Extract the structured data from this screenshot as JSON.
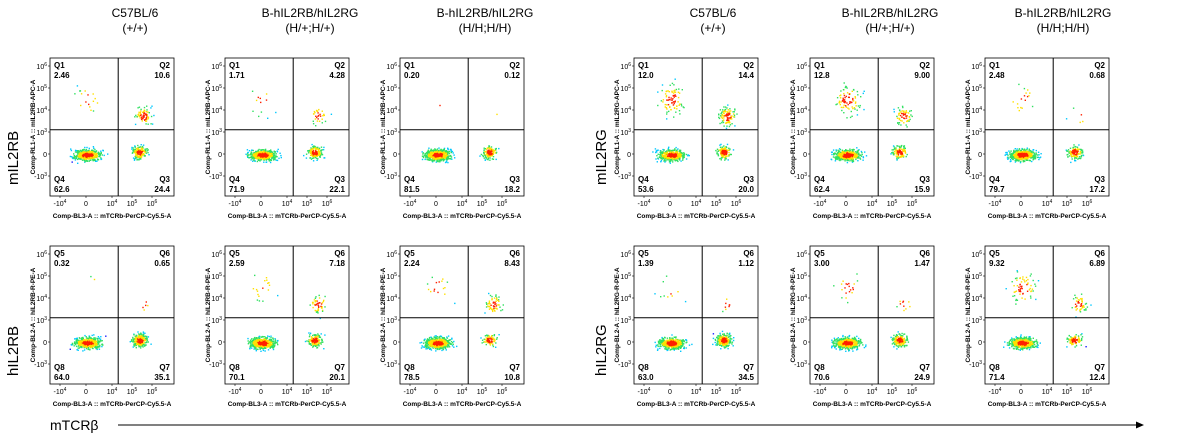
{
  "columns": [
    {
      "line1": "C57BL/6",
      "line2": "(+/+)"
    },
    {
      "line1": "B-hIL2RB/hIL2RG",
      "line2": "(H/+;H/+)"
    },
    {
      "line1": "B-hIL2RB/hIL2RG",
      "line2": "(H/H;H/H)"
    },
    {
      "line1": "C57BL/6",
      "line2": "(+/+)"
    },
    {
      "line1": "B-hIL2RB/hIL2RG",
      "line2": "(H/+;H/+)"
    },
    {
      "line1": "B-hIL2RB/hIL2RG",
      "line2": "(H/H;H/H)"
    }
  ],
  "row_labels": {
    "mIL2RB": "mIL2RB",
    "hIL2RB": "hIL2RB",
    "mIL2RG": "mIL2RG",
    "hIL2RG": "hIL2RG"
  },
  "x_axis_caption": "mTCRβ",
  "tick_labels": {
    "neg": "-10",
    "zero": "0",
    "e3": "10",
    "e4": "10",
    "e5": "10",
    "e6": "10",
    "sup3": "3",
    "sup4": "4",
    "sup5": "5",
    "sup6": "6"
  },
  "colors": {
    "density": [
      "#1a1aff",
      "#00c8ff",
      "#30e060",
      "#ffe000",
      "#ff2000"
    ],
    "gate": "#000000"
  },
  "chart_data": [
    {
      "type": "scatter",
      "xlabel": "Comp-BL3-A :: mTCRb-PerCP-Cy5.5-A",
      "ylabel": "Comp-RL1-A :: mIL2RB-APC-A",
      "quadrants": [
        {
          "name": "Q1",
          "value": "2.46"
        },
        {
          "name": "Q2",
          "value": "10.6"
        },
        {
          "name": "Q4",
          "value": "62.6"
        },
        {
          "name": "Q3",
          "value": "24.4"
        }
      ]
    },
    {
      "type": "scatter",
      "xlabel": "Comp-BL3-A :: mTCRb-PerCP-Cy5.5-A",
      "ylabel": "Comp-RL1-A :: mIL2RB-APC-A",
      "quadrants": [
        {
          "name": "Q1",
          "value": "1.71"
        },
        {
          "name": "Q2",
          "value": "4.28"
        },
        {
          "name": "Q4",
          "value": "71.9"
        },
        {
          "name": "Q3",
          "value": "22.1"
        }
      ]
    },
    {
      "type": "scatter",
      "xlabel": "Comp-BL3-A :: mTCRb-PerCP-Cy5.5-A",
      "ylabel": "Comp-RL1-A :: mIL2RB-APC-A",
      "quadrants": [
        {
          "name": "Q1",
          "value": "0.20"
        },
        {
          "name": "Q2",
          "value": "0.12"
        },
        {
          "name": "Q4",
          "value": "81.5"
        },
        {
          "name": "Q3",
          "value": "18.2"
        }
      ]
    },
    {
      "type": "scatter",
      "xlabel": "Comp-BL3-A :: mTCRb-PerCP-Cy5.5-A",
      "ylabel": "Comp-RL1-A :: mIL2RG-APC-A",
      "quadrants": [
        {
          "name": "Q1",
          "value": "12.0"
        },
        {
          "name": "Q2",
          "value": "14.4"
        },
        {
          "name": "Q4",
          "value": "53.6"
        },
        {
          "name": "Q3",
          "value": "20.0"
        }
      ]
    },
    {
      "type": "scatter",
      "xlabel": "Comp-BL3-A :: mTCRb-PerCP-Cy5.5-A",
      "ylabel": "Comp-RL1-A :: mIL2RG-APC-A",
      "quadrants": [
        {
          "name": "Q1",
          "value": "12.8"
        },
        {
          "name": "Q2",
          "value": "9.00"
        },
        {
          "name": "Q4",
          "value": "62.4"
        },
        {
          "name": "Q3",
          "value": "15.9"
        }
      ]
    },
    {
      "type": "scatter",
      "xlabel": "Comp-BL3-A :: mTCRb-PerCP-Cy5.5-A",
      "ylabel": "Comp-RL1-A :: mIL2RG-APC-A",
      "quadrants": [
        {
          "name": "Q1",
          "value": "2.48"
        },
        {
          "name": "Q2",
          "value": "0.68"
        },
        {
          "name": "Q4",
          "value": "79.7"
        },
        {
          "name": "Q3",
          "value": "17.2"
        }
      ]
    },
    {
      "type": "scatter",
      "xlabel": "Comp-BL3-A :: mTCRb-PerCP-Cy5.5-A",
      "ylabel": "Comp-BL2-A :: hIL2RB-R-PE-A",
      "quadrants": [
        {
          "name": "Q5",
          "value": "0.32"
        },
        {
          "name": "Q6",
          "value": "0.65"
        },
        {
          "name": "Q8",
          "value": "64.0"
        },
        {
          "name": "Q7",
          "value": "35.1"
        }
      ]
    },
    {
      "type": "scatter",
      "xlabel": "Comp-BL3-A :: mTCRb-PerCP-Cy5.5-A",
      "ylabel": "Comp-BL2-A :: hIL2RB-R-PE-A",
      "quadrants": [
        {
          "name": "Q5",
          "value": "2.59"
        },
        {
          "name": "Q6",
          "value": "7.18"
        },
        {
          "name": "Q8",
          "value": "70.1"
        },
        {
          "name": "Q7",
          "value": "20.1"
        }
      ]
    },
    {
      "type": "scatter",
      "xlabel": "Comp-BL3-A :: mTCRb-PerCP-Cy5.5-A",
      "ylabel": "Comp-BL2-A :: hIL2RB-R-PE-A",
      "quadrants": [
        {
          "name": "Q5",
          "value": "2.24"
        },
        {
          "name": "Q6",
          "value": "8.43"
        },
        {
          "name": "Q8",
          "value": "78.5"
        },
        {
          "name": "Q7",
          "value": "10.8"
        }
      ]
    },
    {
      "type": "scatter",
      "xlabel": "Comp-BL3-A :: mTCRb-PerCP-Cy5.5-A",
      "ylabel": "Comp-BL2-A :: hIL2RG-R-PE-A",
      "quadrants": [
        {
          "name": "Q5",
          "value": "1.39"
        },
        {
          "name": "Q6",
          "value": "1.12"
        },
        {
          "name": "Q8",
          "value": "63.0"
        },
        {
          "name": "Q7",
          "value": "34.5"
        }
      ]
    },
    {
      "type": "scatter",
      "xlabel": "Comp-BL3-A :: mTCRb-PerCP-Cy5.5-A",
      "ylabel": "Comp-BL2-A :: hIL2RG-R-PE-A",
      "quadrants": [
        {
          "name": "Q5",
          "value": "3.00"
        },
        {
          "name": "Q6",
          "value": "1.47"
        },
        {
          "name": "Q8",
          "value": "70.6"
        },
        {
          "name": "Q7",
          "value": "24.9"
        }
      ]
    },
    {
      "type": "scatter",
      "xlabel": "Comp-BL3-A :: mTCRb-PerCP-Cy5.5-A",
      "ylabel": "Comp-BL2-A :: hIL2RG-R-PE-A",
      "quadrants": [
        {
          "name": "Q5",
          "value": "9.32"
        },
        {
          "name": "Q6",
          "value": "6.89"
        },
        {
          "name": "Q8",
          "value": "71.4"
        },
        {
          "name": "Q7",
          "value": "12.4"
        }
      ]
    }
  ]
}
